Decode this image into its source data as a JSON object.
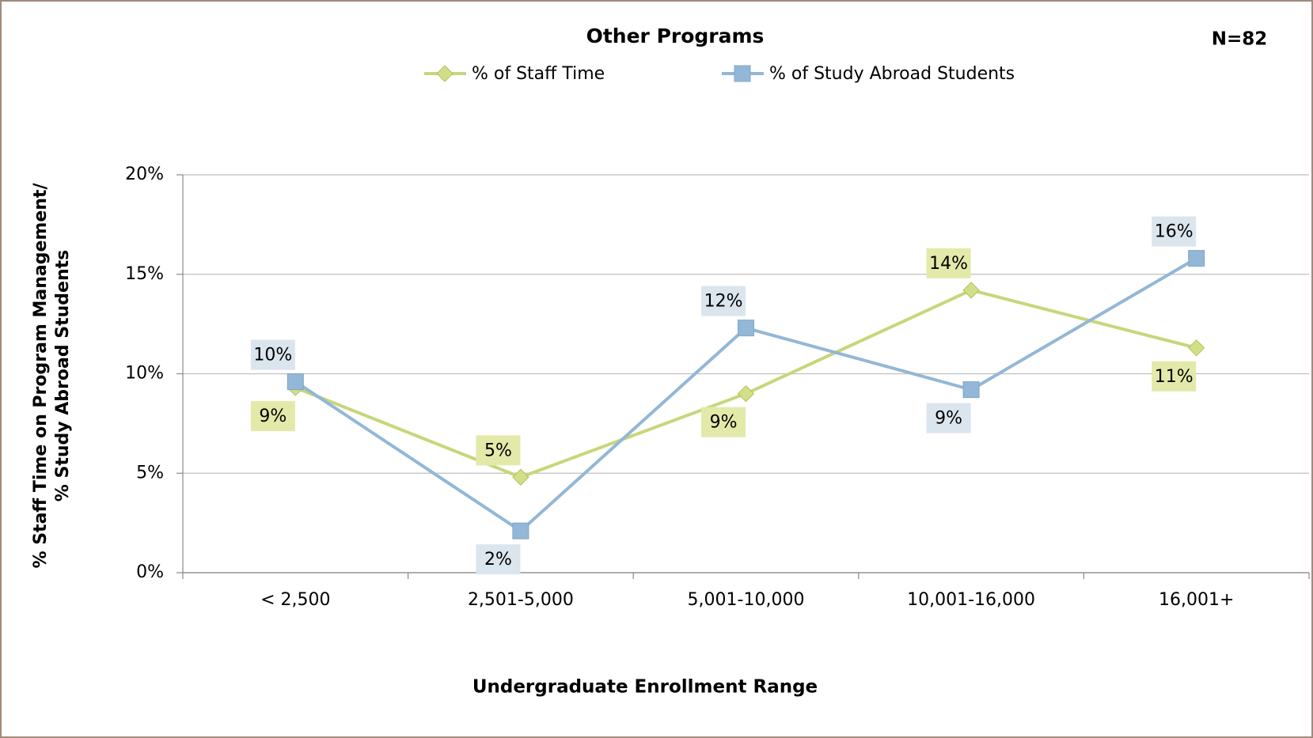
{
  "chart_data": {
    "type": "line",
    "title": "Other Programs",
    "annotation": "N=82",
    "x_label": "Undergraduate Enrollment Range",
    "y_label": [
      "% Staff Time on Program Management/",
      "% Study Abroad Students"
    ],
    "categories": [
      "< 2,500",
      "2,501-5,000",
      "5,001-10,000",
      "10,001-16,000",
      "16,001+"
    ],
    "series": [
      {
        "name": "% of Staff Time",
        "color": "#c8d67a",
        "marker": "diamond",
        "values": [
          9.3,
          4.8,
          9.0,
          14.2,
          11.3
        ],
        "value_labels": [
          "9%",
          "5%",
          "9%",
          "14%",
          "11%"
        ]
      },
      {
        "name": "% of Study Abroad Students",
        "color": "#93b7d6",
        "marker": "square",
        "values": [
          9.6,
          2.1,
          12.3,
          9.2,
          15.8
        ],
        "value_labels": [
          "10%",
          "2%",
          "12%",
          "9%",
          "16%"
        ]
      }
    ],
    "ylim": [
      0,
      20
    ],
    "yticks": [
      {
        "value": 0,
        "label": "0%"
      },
      {
        "value": 5,
        "label": "5%"
      },
      {
        "value": 10,
        "label": "10%"
      },
      {
        "value": 15,
        "label": "15%"
      },
      {
        "value": 20,
        "label": "20%"
      }
    ],
    "grid": true,
    "legend": "top"
  }
}
